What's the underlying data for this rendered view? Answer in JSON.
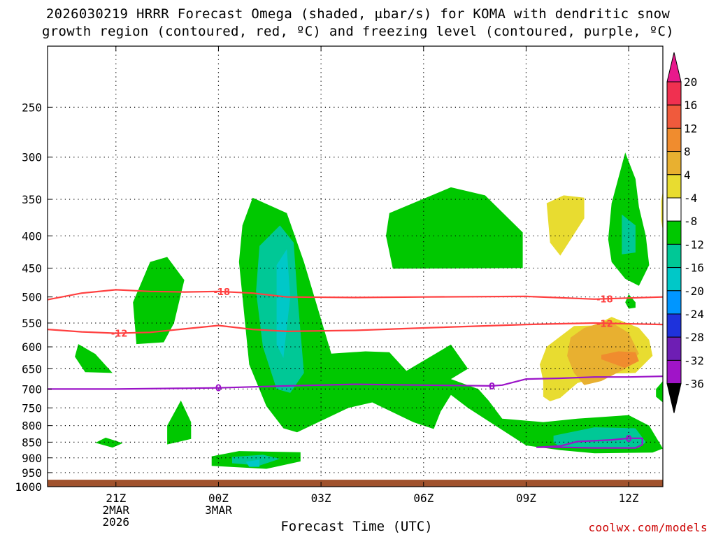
{
  "chart_data": {
    "type": "heatmap",
    "title_line1": "2026030219 HRRR Forecast Omega (shaded, μbar/s) for KOMA with dendritic snow",
    "title_line2": "growth region (contoured, red, ºC) and freezing level (contoured, purple, ºC)",
    "xlabel": "Forecast Time (UTC)",
    "credit": "coolwx.com/models",
    "x_domain_hours": [
      -5,
      13
    ],
    "y_domain_hPa": [
      200,
      1000
    ],
    "y_scale": "log-pressure (inverted)",
    "y_ticks": [
      250,
      300,
      350,
      400,
      450,
      500,
      550,
      600,
      650,
      700,
      750,
      800,
      850,
      900,
      950,
      1000
    ],
    "x_ticks": [
      {
        "hour": -3,
        "lines": [
          "21Z",
          "2MAR",
          "2026"
        ]
      },
      {
        "hour": 0,
        "lines": [
          "00Z",
          "3MAR"
        ]
      },
      {
        "hour": 3,
        "lines": [
          "03Z"
        ]
      },
      {
        "hour": 6,
        "lines": [
          "06Z"
        ]
      },
      {
        "hour": 9,
        "lines": [
          "09Z"
        ]
      },
      {
        "hour": 12,
        "lines": [
          "12Z"
        ]
      }
    ],
    "grid": "dotted",
    "colorbar": {
      "levels": [
        20,
        16,
        12,
        8,
        4,
        -4,
        -8,
        -12,
        -16,
        -20,
        -24,
        -28,
        -32,
        -36
      ],
      "colors": [
        "#f03050",
        "#f05a3c",
        "#f08c2e",
        "#e8b030",
        "#e8dc30",
        "#ffffff",
        "#00c800",
        "#00c896",
        "#00c8c8",
        "#0096ff",
        "#1e32dc",
        "#6e1eb4",
        "#a014c8",
        "#a0a0a0"
      ],
      "top_color": "#e8198c",
      "bottom_color": "#000000"
    },
    "ground_color": "#a0522d",
    "ground_hPa": 975,
    "contours": [
      {
        "label": "-18",
        "color": "#ff4040",
        "points": [
          [
            -5,
            505
          ],
          [
            -4,
            493
          ],
          [
            -3,
            487
          ],
          [
            -2,
            490
          ],
          [
            -1,
            491
          ],
          [
            0,
            490
          ],
          [
            1,
            493
          ],
          [
            2,
            500
          ],
          [
            4,
            501
          ],
          [
            6,
            500
          ],
          [
            9,
            499
          ],
          [
            11,
            504
          ],
          [
            13,
            500
          ]
        ],
        "label_hours": [
          0.1,
          11.3
        ]
      },
      {
        "label": "-12",
        "color": "#ff4040",
        "points": [
          [
            -5,
            563
          ],
          [
            -4,
            568
          ],
          [
            -3,
            571
          ],
          [
            -2,
            569
          ],
          [
            -1,
            562
          ],
          [
            0,
            555
          ],
          [
            1,
            563
          ],
          [
            2,
            567
          ],
          [
            4,
            565
          ],
          [
            6,
            560
          ],
          [
            9,
            553
          ],
          [
            11,
            550
          ],
          [
            13,
            553
          ]
        ],
        "label_hours": [
          -2.9,
          11.3
        ]
      },
      {
        "label": "0",
        "color": "#9b14c8",
        "points": [
          [
            -5,
            700
          ],
          [
            -3,
            700
          ],
          [
            -1,
            698
          ],
          [
            0,
            697
          ],
          [
            2,
            692
          ],
          [
            4,
            688
          ],
          [
            6,
            690
          ],
          [
            8,
            692
          ],
          [
            8.3,
            690
          ],
          [
            9,
            675
          ],
          [
            10,
            673
          ],
          [
            11,
            670
          ],
          [
            12,
            670
          ],
          [
            13,
            668
          ]
        ],
        "label_hours": [
          0,
          8
        ]
      },
      {
        "label": "0",
        "color": "#9b14c8",
        "points": [
          [
            9.3,
            866
          ],
          [
            10,
            862
          ],
          [
            10.5,
            848
          ],
          [
            11.5,
            843
          ],
          [
            12,
            838
          ],
          [
            12.4,
            838
          ],
          [
            12.4,
            858
          ],
          [
            12.2,
            868
          ],
          [
            11,
            868
          ],
          [
            10,
            866
          ],
          [
            9.3,
            866
          ]
        ],
        "label_hours": [
          12
        ]
      }
    ],
    "omega_regions": [
      {
        "level": -8,
        "points": [
          [
            -1.5,
            432
          ],
          [
            -1,
            470
          ],
          [
            -1.3,
            550
          ],
          [
            -1.6,
            590
          ],
          [
            -2.4,
            594
          ],
          [
            -2.5,
            510
          ],
          [
            -2,
            440
          ]
        ]
      },
      {
        "level": -8,
        "points": [
          [
            -4.1,
            594
          ],
          [
            -3.6,
            616
          ],
          [
            -3.1,
            660
          ],
          [
            -3.9,
            658
          ],
          [
            -4.2,
            622
          ]
        ]
      },
      {
        "level": -8,
        "points": [
          [
            -1.1,
            730
          ],
          [
            -0.8,
            790
          ],
          [
            -0.8,
            840
          ],
          [
            -1.5,
            857
          ],
          [
            -1.5,
            800
          ]
        ]
      },
      {
        "level": -8,
        "points": [
          [
            -3.3,
            836
          ],
          [
            -2.8,
            853
          ],
          [
            -3.1,
            867
          ],
          [
            -3.6,
            852
          ]
        ]
      },
      {
        "level": -8,
        "points": [
          [
            1,
            348
          ],
          [
            2,
            368
          ],
          [
            2.5,
            440
          ],
          [
            3.3,
            615
          ],
          [
            4.3,
            610
          ],
          [
            5,
            612
          ],
          [
            5.5,
            655
          ],
          [
            6.8,
            595
          ],
          [
            7.3,
            650
          ],
          [
            6.8,
            675
          ],
          [
            7.6,
            700
          ],
          [
            7.9,
            730
          ],
          [
            8.3,
            780
          ],
          [
            9.5,
            790
          ],
          [
            10.5,
            780
          ],
          [
            12,
            770
          ],
          [
            12.6,
            800
          ],
          [
            13,
            870
          ],
          [
            12.7,
            883
          ],
          [
            11,
            885
          ],
          [
            10,
            875
          ],
          [
            9,
            860
          ],
          [
            7.3,
            750
          ],
          [
            6.8,
            715
          ],
          [
            6.5,
            760
          ],
          [
            6.3,
            810
          ],
          [
            5.7,
            790
          ],
          [
            4.5,
            735
          ],
          [
            3.8,
            750
          ],
          [
            2.3,
            820
          ],
          [
            1.9,
            808
          ],
          [
            1.4,
            745
          ],
          [
            0.9,
            640
          ],
          [
            0.6,
            440
          ],
          [
            0.7,
            385
          ]
        ]
      },
      {
        "level": -8,
        "points": [
          [
            -0.2,
            895
          ],
          [
            0.6,
            878
          ],
          [
            2.4,
            882
          ],
          [
            2.4,
            912
          ],
          [
            1.4,
            937
          ],
          [
            -0.2,
            927
          ]
        ]
      },
      {
        "level": -8,
        "points": [
          [
            5,
            368
          ],
          [
            6.8,
            335
          ],
          [
            7.8,
            345
          ],
          [
            8.9,
            395
          ],
          [
            8.9,
            450
          ],
          [
            5.1,
            451
          ],
          [
            4.9,
            400
          ]
        ]
      },
      {
        "level": -8,
        "points": [
          [
            11.4,
            405
          ],
          [
            11.5,
            355
          ],
          [
            11.9,
            295
          ],
          [
            12.2,
            325
          ],
          [
            12.3,
            360
          ],
          [
            12.5,
            400
          ],
          [
            12.6,
            445
          ],
          [
            12.3,
            480
          ],
          [
            11.9,
            468
          ],
          [
            11.5,
            440
          ]
        ]
      },
      {
        "level": -8,
        "points": [
          [
            12,
            495
          ],
          [
            12.2,
            510
          ],
          [
            12.2,
            520
          ],
          [
            12,
            522
          ],
          [
            11.9,
            510
          ]
        ]
      },
      {
        "level": -8,
        "points": [
          [
            12.8,
            700
          ],
          [
            13,
            680
          ],
          [
            13,
            735
          ],
          [
            12.8,
            720
          ]
        ]
      },
      {
        "level": -12,
        "points": [
          [
            1.2,
            415
          ],
          [
            1.8,
            385
          ],
          [
            2.2,
            410
          ],
          [
            2.3,
            490
          ],
          [
            2.5,
            660
          ],
          [
            2.1,
            710
          ],
          [
            1.7,
            700
          ],
          [
            1.3,
            600
          ],
          [
            1.1,
            490
          ]
        ]
      },
      {
        "level": -12,
        "points": [
          [
            9.8,
            830
          ],
          [
            11,
            805
          ],
          [
            12.2,
            808
          ],
          [
            12.5,
            850
          ],
          [
            12.3,
            868
          ],
          [
            11,
            868
          ],
          [
            10,
            866
          ],
          [
            9.8,
            850
          ]
        ]
      },
      {
        "level": -12,
        "points": [
          [
            11.8,
            370
          ],
          [
            12.2,
            385
          ],
          [
            12.2,
            425
          ],
          [
            11.8,
            428
          ]
        ]
      },
      {
        "level": -12,
        "points": [
          [
            0.4,
            897
          ],
          [
            1.3,
            890
          ],
          [
            1.8,
            903
          ],
          [
            1.2,
            926
          ],
          [
            0.4,
            918
          ]
        ]
      },
      {
        "level": -16,
        "points": [
          [
            1.7,
            445
          ],
          [
            2,
            420
          ],
          [
            2.1,
            500
          ],
          [
            1.9,
            625
          ],
          [
            1.7,
            595
          ]
        ]
      },
      {
        "level": -16,
        "points": [
          [
            0.8,
            913
          ],
          [
            1.2,
            906
          ],
          [
            1.2,
            930
          ],
          [
            0.9,
            930
          ]
        ]
      },
      {
        "level": 4,
        "points": [
          [
            9.6,
            355
          ],
          [
            10.1,
            345
          ],
          [
            10.7,
            348
          ],
          [
            10.7,
            375
          ],
          [
            10,
            430
          ],
          [
            9.7,
            410
          ]
        ]
      },
      {
        "level": 4,
        "points": [
          [
            12.95,
            352
          ],
          [
            13,
            340
          ],
          [
            13,
            392
          ],
          [
            12.95,
            378
          ]
        ]
      },
      {
        "level": 4,
        "points": [
          [
            9.6,
            600
          ],
          [
            10.4,
            556
          ],
          [
            11,
            555
          ],
          [
            11.5,
            538
          ],
          [
            12.3,
            560
          ],
          [
            12.6,
            585
          ],
          [
            12.7,
            620
          ],
          [
            12.2,
            660
          ],
          [
            11.4,
            662
          ],
          [
            10.5,
            685
          ],
          [
            10,
            723
          ],
          [
            9.7,
            732
          ],
          [
            9.5,
            720
          ],
          [
            9.5,
            680
          ],
          [
            9.4,
            640
          ]
        ]
      },
      {
        "level": 8,
        "points": [
          [
            10.3,
            580
          ],
          [
            10.7,
            560
          ],
          [
            11.4,
            545
          ],
          [
            12,
            570
          ],
          [
            12.3,
            615
          ],
          [
            11.9,
            650
          ],
          [
            11.2,
            680
          ],
          [
            10.7,
            690
          ],
          [
            10.4,
            660
          ],
          [
            10.2,
            620
          ]
        ]
      },
      {
        "level": 12,
        "points": [
          [
            11.2,
            618
          ],
          [
            11.7,
            610
          ],
          [
            12.2,
            612
          ],
          [
            12.3,
            632
          ],
          [
            11.9,
            648
          ],
          [
            11.2,
            628
          ]
        ]
      },
      {
        "level": 4,
        "points": [
          [
            9.95,
            375
          ],
          [
            10.1,
            370
          ],
          [
            10.15,
            385
          ],
          [
            10.05,
            400
          ],
          [
            9.95,
            395
          ]
        ]
      }
    ]
  }
}
